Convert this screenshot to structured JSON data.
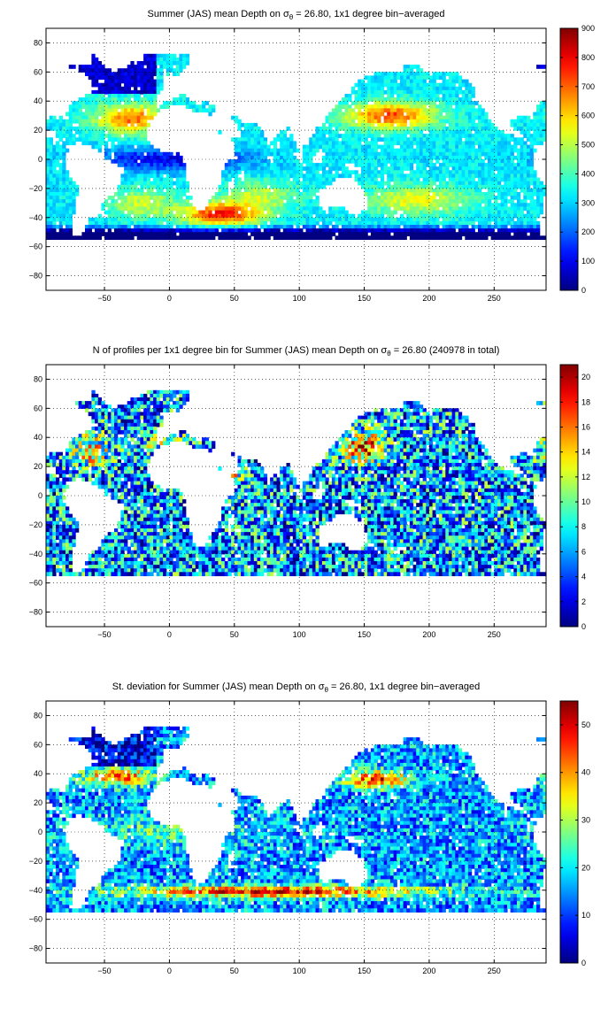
{
  "chart_data": [
    {
      "type": "heatmap",
      "title_pre": "Summer (JAS) mean Depth on σ",
      "title_sub": "θ",
      "title_post": " = 26.80, 1x1 degree bin−averaged",
      "xlim": [
        -95,
        290
      ],
      "ylim": [
        -90,
        90
      ],
      "xticks": [
        -50,
        0,
        50,
        100,
        150,
        200,
        250
      ],
      "yticks": [
        -80,
        -60,
        -40,
        -20,
        0,
        20,
        40,
        60,
        80
      ],
      "colorbar": {
        "min": 0,
        "max": 900,
        "ticks": [
          0,
          100,
          200,
          300,
          400,
          500,
          600,
          700,
          800,
          900
        ]
      },
      "grid": true,
      "field": "mean_depth",
      "colorscale": "jet"
    },
    {
      "type": "heatmap",
      "title_pre": "N of profiles per 1x1 degree bin for Summer (JAS) mean Depth on σ",
      "title_sub": "θ",
      "title_post": " = 26.80 (240978 in total)",
      "xlim": [
        -95,
        290
      ],
      "ylim": [
        -90,
        90
      ],
      "xticks": [
        -50,
        0,
        50,
        100,
        150,
        200,
        250
      ],
      "yticks": [
        -80,
        -60,
        -40,
        -20,
        0,
        20,
        40,
        60,
        80
      ],
      "colorbar": {
        "min": 0,
        "max": 21,
        "ticks": [
          0,
          2,
          4,
          6,
          8,
          10,
          12,
          14,
          16,
          18,
          20
        ]
      },
      "grid": true,
      "field": "profile_count",
      "colorscale": "jet"
    },
    {
      "type": "heatmap",
      "title_pre": "St. deviation for Summer (JAS) mean Depth on σ",
      "title_sub": "θ",
      "title_post": " = 26.80, 1x1 degree bin−averaged",
      "xlim": [
        -95,
        290
      ],
      "ylim": [
        -90,
        90
      ],
      "xticks": [
        -50,
        0,
        50,
        100,
        150,
        200,
        250
      ],
      "yticks": [
        -80,
        -60,
        -40,
        -20,
        0,
        20,
        40,
        60,
        80
      ],
      "colorbar": {
        "min": 0,
        "max": 55,
        "ticks": [
          0,
          10,
          20,
          30,
          40,
          50
        ]
      },
      "grid": true,
      "field": "depth_std",
      "colorscale": "jet"
    }
  ]
}
